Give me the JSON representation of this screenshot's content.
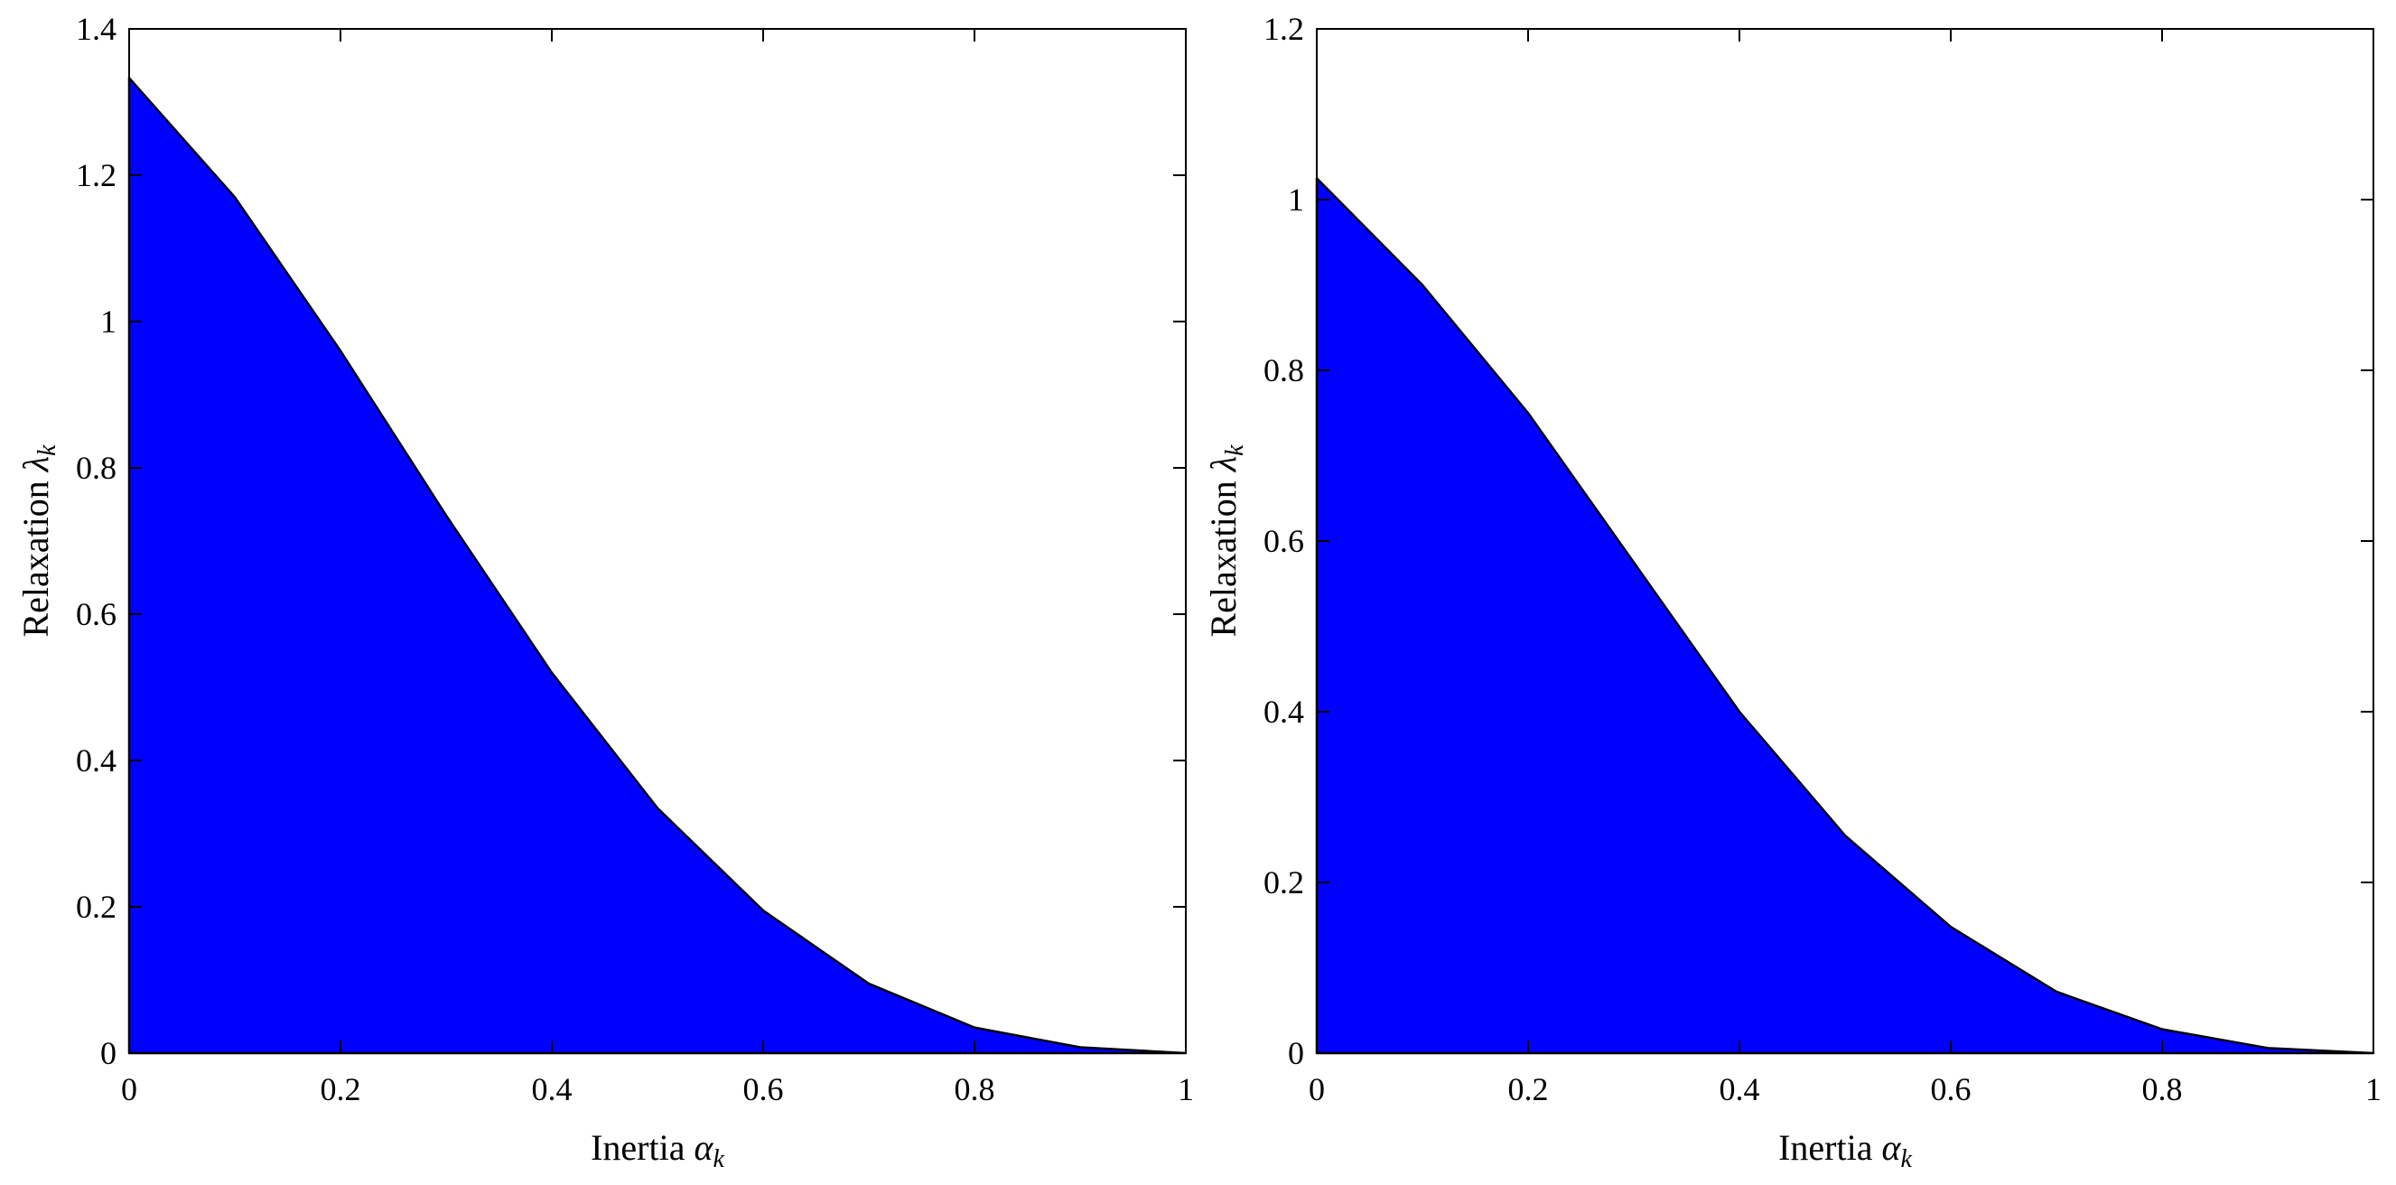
{
  "chart_data": [
    {
      "type": "area",
      "xlabel": "Inertia αk",
      "ylabel": "Relaxation λk",
      "xlim": [
        0,
        1
      ],
      "ylim": [
        0,
        1.4
      ],
      "xticks": [
        0,
        0.2,
        0.4,
        0.6,
        0.8,
        1
      ],
      "xtick_labels": [
        "0",
        "0.2",
        "0.4",
        "0.6",
        "0.8",
        "1"
      ],
      "yticks": [
        0,
        0.2,
        0.4,
        0.6,
        0.8,
        1,
        1.2,
        1.4
      ],
      "ytick_labels": [
        "0",
        "0.2",
        "0.4",
        "0.6",
        "0.8",
        "1",
        "1.2",
        "1.4"
      ],
      "x": [
        0,
        0.1,
        0.2,
        0.3,
        0.4,
        0.5,
        0.6,
        0.7,
        0.8,
        0.9,
        1.0
      ],
      "values": [
        1.333,
        1.17,
        0.96,
        0.735,
        0.52,
        0.335,
        0.195,
        0.095,
        0.035,
        0.008,
        0.0
      ],
      "fill_color": "#0000ff",
      "grid": false
    },
    {
      "type": "area",
      "xlabel": "Inertia αk",
      "ylabel": "Relaxation λk",
      "xlim": [
        0,
        1
      ],
      "ylim": [
        0,
        1.2
      ],
      "xticks": [
        0,
        0.2,
        0.4,
        0.6,
        0.8,
        1
      ],
      "xtick_labels": [
        "0",
        "0.2",
        "0.4",
        "0.6",
        "0.8",
        "1"
      ],
      "yticks": [
        0,
        0.2,
        0.4,
        0.6,
        0.8,
        1,
        1.2
      ],
      "ytick_labels": [
        "0",
        "0.2",
        "0.4",
        "0.6",
        "0.8",
        "1",
        "1.2"
      ],
      "x": [
        0,
        0.1,
        0.2,
        0.3,
        0.4,
        0.5,
        0.6,
        0.7,
        0.8,
        0.9,
        1.0
      ],
      "values": [
        1.025,
        0.9,
        0.75,
        0.575,
        0.4,
        0.255,
        0.148,
        0.072,
        0.028,
        0.006,
        0.0
      ],
      "fill_color": "#0000ff",
      "grid": false
    }
  ]
}
